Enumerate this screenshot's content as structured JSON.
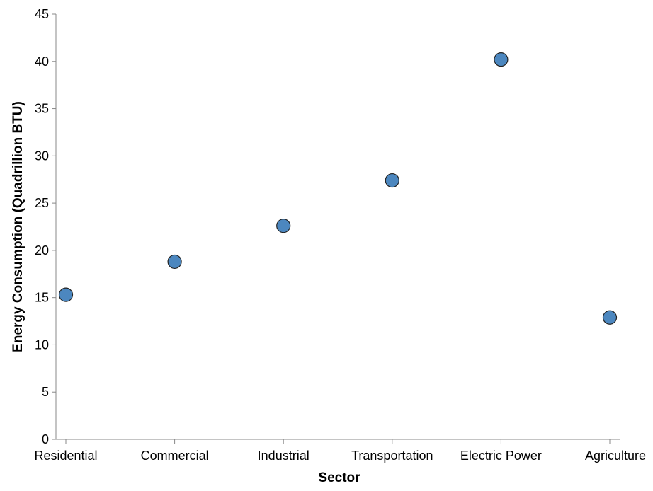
{
  "chart_data": {
    "type": "scatter",
    "title": "",
    "xlabel": "Sector",
    "ylabel": "Energy Consumption (Quadrillion BTU)",
    "categories": [
      "Residential",
      "Commercial",
      "Industrial",
      "Transportation",
      "Electric Power",
      "Agriculture"
    ],
    "series": [
      {
        "values": [
          15.3,
          18.8,
          22.6,
          27.4,
          40.2,
          12.9
        ]
      }
    ],
    "ylim": [
      0,
      45
    ],
    "yticks": [
      0,
      5,
      10,
      15,
      20,
      25,
      30,
      35,
      40,
      45
    ],
    "grid": false,
    "point_color": "#4c87bf"
  }
}
